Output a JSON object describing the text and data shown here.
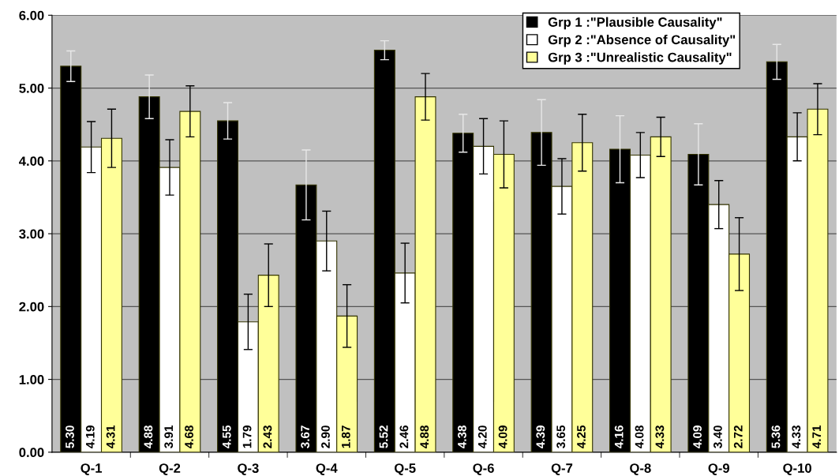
{
  "chart_data": {
    "type": "bar",
    "categories": [
      "Q-1",
      "Q-2",
      "Q-3",
      "Q-4",
      "Q-5",
      "Q-6",
      "Q-7",
      "Q-8",
      "Q-9",
      "Q-10"
    ],
    "series": [
      {
        "name": "Grp 1 :\"Plausible Causality\"",
        "color": "#000000",
        "values": [
          5.3,
          4.88,
          4.55,
          3.67,
          5.52,
          4.38,
          4.39,
          4.16,
          4.09,
          5.36
        ],
        "value_labels": [
          "5.30",
          "4.88",
          "4.55",
          "3.67",
          "5.52",
          "4.38",
          "4.39",
          "4.16",
          "4.09",
          "5.36"
        ],
        "errors": [
          0.21,
          0.3,
          0.25,
          0.48,
          0.13,
          0.26,
          0.45,
          0.46,
          0.42,
          0.24
        ]
      },
      {
        "name": "Grp 2 :\"Absence of Causality\"",
        "color": "#ffffff",
        "values": [
          4.19,
          3.91,
          1.79,
          2.9,
          2.46,
          4.2,
          3.65,
          4.08,
          3.4,
          4.33
        ],
        "value_labels": [
          "4.19",
          "3.91",
          "1.79",
          "2.90",
          "2.46",
          "4.20",
          "3.65",
          "4.08",
          "3.40",
          "4.33"
        ],
        "errors": [
          0.35,
          0.38,
          0.38,
          0.41,
          0.41,
          0.38,
          0.38,
          0.31,
          0.33,
          0.33
        ]
      },
      {
        "name": "Grp 3 :\"Unrealistic Causality\"",
        "color": "#ffff99",
        "values": [
          4.31,
          4.68,
          2.43,
          1.87,
          4.88,
          4.09,
          4.25,
          4.33,
          2.72,
          4.71
        ],
        "value_labels": [
          "4.31",
          "4.68",
          "2.43",
          "1.87",
          "4.88",
          "4.09",
          "4.25",
          "4.33",
          "2.72",
          "4.71"
        ],
        "errors": [
          0.4,
          0.35,
          0.43,
          0.43,
          0.32,
          0.46,
          0.39,
          0.27,
          0.5,
          0.35
        ]
      }
    ],
    "ylim": [
      0,
      6
    ],
    "yticks": [
      {
        "value": 0,
        "label": "0.00"
      },
      {
        "value": 1,
        "label": "1.00"
      },
      {
        "value": 2,
        "label": "2.00"
      },
      {
        "value": 3,
        "label": "3.00"
      },
      {
        "value": 4,
        "label": "4.00"
      },
      {
        "value": 5,
        "label": "5.00"
      },
      {
        "value": 6,
        "label": "6.00"
      }
    ],
    "grid": "y",
    "legend": "top right"
  }
}
